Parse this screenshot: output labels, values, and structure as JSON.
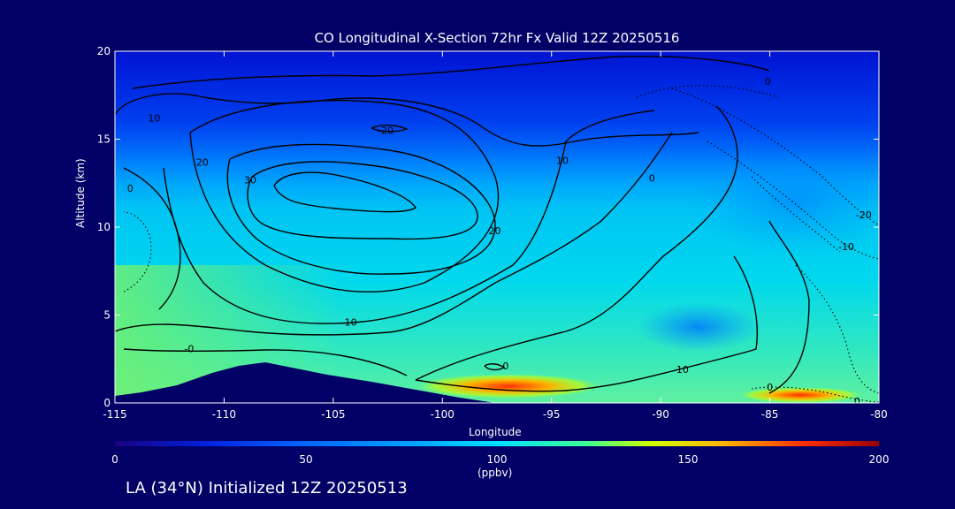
{
  "chart_data": {
    "type": "heatmap",
    "title": "CO Longitudinal X-Section 72hr  Fx Valid 12Z 20250516",
    "xlabel": "Longitude",
    "ylabel": "Altitude (km)",
    "xlim": [
      -115,
      -80
    ],
    "ylim": [
      0,
      20
    ],
    "x_ticks": [
      "-115",
      "-110",
      "-105",
      "-100",
      "-95",
      "-90",
      "-85",
      "-80"
    ],
    "y_ticks": [
      "0",
      "5",
      "10",
      "15",
      "20"
    ],
    "colorbar": {
      "range": [
        0,
        200
      ],
      "ticks": [
        "0",
        "50",
        "100",
        "150",
        "200"
      ],
      "units": "(ppbv)"
    },
    "contour_labels": [
      {
        "text": "0",
        "lon": -85.1,
        "alt": 18.3
      },
      {
        "text": "10",
        "lon": -113.2,
        "alt": 16.2
      },
      {
        "text": "-20",
        "lon": -102.6,
        "alt": 15.5
      },
      {
        "text": "20",
        "lon": -111.0,
        "alt": 13.7
      },
      {
        "text": "30",
        "lon": -108.8,
        "alt": 12.7
      },
      {
        "text": "10",
        "lon": -94.5,
        "alt": 13.8
      },
      {
        "text": "0",
        "lon": -90.4,
        "alt": 12.8
      },
      {
        "text": "0",
        "lon": -114.3,
        "alt": 12.2
      },
      {
        "text": "-20",
        "lon": -80.7,
        "alt": 10.7
      },
      {
        "text": "20",
        "lon": -97.6,
        "alt": 9.8
      },
      {
        "text": "-10",
        "lon": -81.5,
        "alt": 8.9
      },
      {
        "text": "10",
        "lon": -104.2,
        "alt": 4.6
      },
      {
        "text": "-0",
        "lon": -111.6,
        "alt": 3.1
      },
      {
        "text": "0",
        "lon": -97.1,
        "alt": 2.1
      },
      {
        "text": "10",
        "lon": -89.0,
        "alt": 1.9
      },
      {
        "text": "0",
        "lon": -85.0,
        "alt": 0.9
      },
      {
        "text": "0",
        "lon": -81.0,
        "alt": 0.1
      }
    ]
  },
  "footer_text": "LA (34°N) Initialized 12Z 20250513",
  "colors": {
    "background": "#000066",
    "colormap": [
      "#1a0080",
      "#0022e0",
      "#0066ff",
      "#00a8ff",
      "#00e0ff",
      "#40ff90",
      "#d0ff00",
      "#ffb000",
      "#ff3000",
      "#990000"
    ]
  }
}
